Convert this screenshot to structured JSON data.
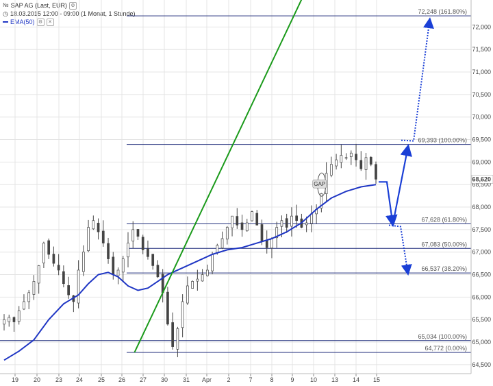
{
  "legend": {
    "instrument": "SAP AG (Last, EUR)",
    "period": "18.03.2015 12:00 - 09:00 (1 Monat, 1 Stunde)",
    "indicator": "EMA(50)",
    "icon_chart": "chart-type-icon",
    "icon_clock": "clock-icon",
    "icon_settings": "gear-icon",
    "icon_close": "close-icon"
  },
  "colors": {
    "candle": "#444444",
    "ema": "#1f36c4",
    "trendline": "#1a9a1a",
    "levels": "#1d2a7a",
    "arrows": "#1a3fd6",
    "grid": "#e4e4e4"
  },
  "chart_data": {
    "type": "candlestick",
    "title": "SAP AG (Last, EUR)",
    "ylim": [
      64.3,
      72.6
    ],
    "y_ticks": [
      64.5,
      65.0,
      65.5,
      66.0,
      66.5,
      67.0,
      67.5,
      68.0,
      68.5,
      69.0,
      69.5,
      70.0,
      70.5,
      71.0,
      71.5,
      72.0
    ],
    "y_tick_labels": [
      "64,500",
      "65,000",
      "65,500",
      "66,000",
      "66,500",
      "67,000",
      "67,500",
      "68,000",
      "68,500",
      "69,000",
      "69,500",
      "70,000",
      "70,500",
      "71,000",
      "71,500",
      "72,000"
    ],
    "x_ticks": [
      "19",
      "20",
      "23",
      "24",
      "25",
      "26",
      "27",
      "30",
      "31",
      "Apr",
      "2",
      "7",
      "8",
      "9",
      "10",
      "13",
      "14",
      "15"
    ],
    "last_price": 68.62,
    "last_price_label": "68,620",
    "fib_levels": [
      {
        "value": 72.248,
        "label": "72,248 (161.80%)"
      },
      {
        "value": 69.393,
        "label": "69,393 (100.00%)"
      },
      {
        "value": 67.628,
        "label": "67,628 (61.80%)"
      },
      {
        "value": 67.083,
        "label": "67,083 (50.00%)"
      },
      {
        "value": 66.537,
        "label": "66,537 (38.20%)"
      },
      {
        "value": 65.034,
        "label": "65,034 (100.00%)"
      },
      {
        "value": 64.772,
        "label": "64,772 (0.00%)"
      }
    ],
    "close_path": [
      [
        0,
        65.5
      ],
      [
        1,
        65.55
      ],
      [
        2,
        65.45
      ],
      [
        3,
        65.7
      ],
      [
        4,
        65.9
      ],
      [
        5,
        66.1
      ],
      [
        6,
        66.35
      ],
      [
        7,
        66.7
      ],
      [
        8,
        67.2
      ],
      [
        9,
        66.95
      ],
      [
        10,
        66.75
      ],
      [
        11,
        66.6
      ],
      [
        12,
        66.3
      ],
      [
        13,
        66.05
      ],
      [
        14,
        65.9
      ],
      [
        15,
        66.6
      ],
      [
        16,
        67.0
      ],
      [
        17,
        67.55
      ],
      [
        18,
        67.7
      ],
      [
        19,
        67.45
      ],
      [
        20,
        67.2
      ],
      [
        21,
        66.85
      ],
      [
        22,
        66.5
      ],
      [
        23,
        66.6
      ],
      [
        24,
        66.85
      ],
      [
        25,
        67.2
      ],
      [
        26,
        67.5
      ],
      [
        27,
        67.35
      ],
      [
        28,
        67.05
      ],
      [
        29,
        66.9
      ],
      [
        30,
        66.7
      ],
      [
        31,
        66.45
      ],
      [
        32,
        66.1
      ],
      [
        33,
        65.4
      ],
      [
        34,
        64.9
      ],
      [
        35,
        65.3
      ],
      [
        36,
        65.9
      ],
      [
        37,
        66.25
      ],
      [
        38,
        66.35
      ],
      [
        39,
        66.4
      ],
      [
        40,
        66.5
      ],
      [
        41,
        66.6
      ],
      [
        42,
        66.95
      ],
      [
        43,
        67.15
      ],
      [
        44,
        67.3
      ],
      [
        45,
        67.55
      ],
      [
        46,
        67.8
      ],
      [
        47,
        67.6
      ],
      [
        48,
        67.5
      ],
      [
        49,
        67.65
      ],
      [
        50,
        67.9
      ],
      [
        51,
        67.6
      ],
      [
        52,
        67.25
      ],
      [
        53,
        67.1
      ],
      [
        54,
        67.3
      ],
      [
        55,
        67.55
      ],
      [
        56,
        67.7
      ],
      [
        57,
        67.55
      ],
      [
        58,
        67.8
      ],
      [
        59,
        67.7
      ],
      [
        60,
        67.55
      ],
      [
        61,
        67.65
      ],
      [
        62,
        67.85
      ],
      [
        63,
        67.95
      ],
      [
        64,
        68.3
      ],
      [
        65,
        68.75
      ],
      [
        66,
        68.95
      ],
      [
        67,
        69.05
      ],
      [
        68,
        69.15
      ],
      [
        69,
        69.1
      ],
      [
        70,
        69.2
      ],
      [
        71,
        69.05
      ],
      [
        72,
        68.85
      ],
      [
        73,
        69.1
      ],
      [
        74,
        68.95
      ],
      [
        75,
        68.62
      ]
    ],
    "ema_path": [
      [
        0,
        64.6
      ],
      [
        3,
        64.8
      ],
      [
        6,
        65.05
      ],
      [
        9,
        65.5
      ],
      [
        12,
        65.85
      ],
      [
        15,
        66.05
      ],
      [
        17,
        66.3
      ],
      [
        19,
        66.5
      ],
      [
        21,
        66.55
      ],
      [
        23,
        66.45
      ],
      [
        25,
        66.25
      ],
      [
        27,
        66.15
      ],
      [
        29,
        66.2
      ],
      [
        31,
        66.35
      ],
      [
        33,
        66.5
      ],
      [
        36,
        66.65
      ],
      [
        39,
        66.8
      ],
      [
        42,
        66.95
      ],
      [
        45,
        67.05
      ],
      [
        48,
        67.1
      ],
      [
        51,
        67.2
      ],
      [
        54,
        67.3
      ],
      [
        57,
        67.45
      ],
      [
        60,
        67.65
      ],
      [
        63,
        67.95
      ],
      [
        66,
        68.2
      ],
      [
        69,
        68.35
      ],
      [
        72,
        68.45
      ],
      [
        75,
        68.5
      ]
    ],
    "trendline": {
      "from": [
        26.3,
        64.772
      ],
      "to": [
        52.0,
        70.75
      ]
    },
    "gap_annotation": {
      "label": "GAP",
      "x": 63.5,
      "y": 68.5
    },
    "scenarios": {
      "up_target": 72.248,
      "down_target": 66.537,
      "pullback": 67.628
    }
  }
}
